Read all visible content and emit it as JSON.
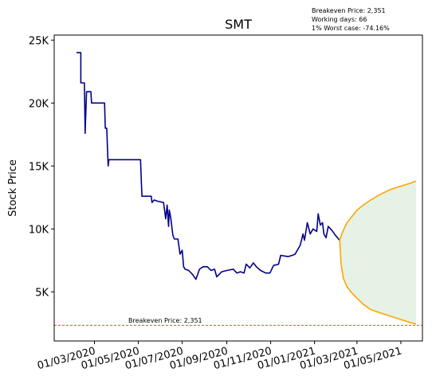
{
  "chart_data": {
    "type": "line",
    "title": "SMT",
    "ylabel": "Stock Price",
    "xlabel": "",
    "ylim": [
      1100,
      25400
    ],
    "xlim": [
      "2020-01-05",
      "2021-05-31"
    ],
    "y_ticks": [
      {
        "value": 5000,
        "label": "5K"
      },
      {
        "value": 10000,
        "label": "10K"
      },
      {
        "value": 15000,
        "label": "15K"
      },
      {
        "value": 20000,
        "label": "20K"
      },
      {
        "value": 25000,
        "label": "25K"
      }
    ],
    "x_ticks": [
      {
        "date": "2020-03-01",
        "label": "01/03/2020"
      },
      {
        "date": "2020-05-01",
        "label": "01/05/2020"
      },
      {
        "date": "2020-07-01",
        "label": "01/07/2020"
      },
      {
        "date": "2020-09-01",
        "label": "01/09/2020"
      },
      {
        "date": "2020-11-01",
        "label": "01/11/2020"
      },
      {
        "date": "2021-01-01",
        "label": "01/01/2021"
      },
      {
        "date": "2021-03-01",
        "label": "01/03/2021"
      },
      {
        "date": "2021-05-01",
        "label": "01/05/2021"
      }
    ],
    "annotation_lines": [
      "Breakeven Price: 2,351",
      "Working days: 66",
      "1% Worst case: -74.16%"
    ],
    "breakeven": {
      "value": 2351,
      "label": "Breakeven Price: 2,351"
    },
    "colors": {
      "history": "#00008b",
      "forecast": "#ffa500",
      "band_fill": "#e5f2e5",
      "breakeven": "#ff0000"
    },
    "series": [
      {
        "role": "history",
        "points": [
          [
            "2020-02-05",
            24000
          ],
          [
            "2020-02-11",
            24000
          ],
          [
            "2020-02-11",
            21600
          ],
          [
            "2020-02-16",
            21600
          ],
          [
            "2020-02-17",
            17600
          ],
          [
            "2020-02-19",
            20900
          ],
          [
            "2020-02-25",
            20900
          ],
          [
            "2020-02-26",
            20000
          ],
          [
            "2020-03-15",
            20000
          ],
          [
            "2020-03-16",
            18000
          ],
          [
            "2020-03-18",
            18000
          ],
          [
            "2020-03-20",
            15000
          ],
          [
            "2020-03-21",
            15500
          ],
          [
            "2020-05-04",
            15500
          ],
          [
            "2020-05-05",
            14000
          ],
          [
            "2020-05-06",
            12600
          ],
          [
            "2020-05-19",
            12600
          ],
          [
            "2020-05-20",
            12100
          ],
          [
            "2020-05-23",
            12300
          ],
          [
            "2020-05-28",
            12200
          ],
          [
            "2020-06-05",
            12100
          ],
          [
            "2020-06-08",
            10800
          ],
          [
            "2020-06-10",
            11900
          ],
          [
            "2020-06-12",
            10200
          ],
          [
            "2020-06-13",
            11500
          ],
          [
            "2020-06-15",
            10900
          ],
          [
            "2020-06-18",
            9500
          ],
          [
            "2020-06-20",
            9200
          ],
          [
            "2020-06-25",
            9200
          ],
          [
            "2020-06-28",
            8000
          ],
          [
            "2020-07-01",
            8300
          ],
          [
            "2020-07-03",
            7000
          ],
          [
            "2020-07-05",
            6800
          ],
          [
            "2020-07-10",
            6700
          ],
          [
            "2020-07-15",
            6400
          ],
          [
            "2020-07-20",
            6000
          ],
          [
            "2020-07-25",
            6800
          ],
          [
            "2020-07-30",
            7000
          ],
          [
            "2020-08-05",
            7000
          ],
          [
            "2020-08-10",
            6700
          ],
          [
            "2020-08-15",
            6800
          ],
          [
            "2020-08-18",
            6200
          ],
          [
            "2020-08-25",
            6600
          ],
          [
            "2020-09-01",
            6700
          ],
          [
            "2020-09-10",
            6800
          ],
          [
            "2020-09-15",
            6500
          ],
          [
            "2020-09-20",
            6600
          ],
          [
            "2020-09-25",
            6500
          ],
          [
            "2020-09-28",
            7200
          ],
          [
            "2020-10-03",
            6900
          ],
          [
            "2020-10-08",
            7300
          ],
          [
            "2020-10-12",
            7000
          ],
          [
            "2020-10-18",
            6700
          ],
          [
            "2020-10-25",
            6500
          ],
          [
            "2020-10-31",
            6500
          ],
          [
            "2020-11-05",
            7100
          ],
          [
            "2020-11-12",
            7200
          ],
          [
            "2020-11-15",
            7900
          ],
          [
            "2020-11-25",
            7800
          ],
          [
            "2020-12-01",
            7900
          ],
          [
            "2020-12-05",
            8000
          ],
          [
            "2020-12-12",
            8700
          ],
          [
            "2020-12-16",
            9600
          ],
          [
            "2020-12-18",
            9100
          ],
          [
            "2020-12-22",
            10500
          ],
          [
            "2020-12-26",
            9600
          ],
          [
            "2020-12-30",
            10000
          ],
          [
            "2021-01-04",
            9800
          ],
          [
            "2021-01-06",
            11200
          ],
          [
            "2021-01-09",
            10300
          ],
          [
            "2021-01-12",
            10500
          ],
          [
            "2021-01-14",
            9600
          ],
          [
            "2021-01-17",
            9300
          ],
          [
            "2021-01-20",
            10200
          ],
          [
            "2021-01-25",
            9900
          ],
          [
            "2021-01-30",
            9500
          ],
          [
            "2021-02-05",
            9100
          ]
        ]
      },
      {
        "role": "forecast_upper",
        "points": [
          [
            "2021-02-05",
            9100
          ],
          [
            "2021-02-08",
            9600
          ],
          [
            "2021-02-11",
            10000
          ],
          [
            "2021-02-15",
            10500
          ],
          [
            "2021-02-22",
            11000
          ],
          [
            "2021-03-01",
            11500
          ],
          [
            "2021-03-10",
            11900
          ],
          [
            "2021-03-20",
            12300
          ],
          [
            "2021-04-01",
            12700
          ],
          [
            "2021-04-15",
            13100
          ],
          [
            "2021-05-01",
            13400
          ],
          [
            "2021-05-15",
            13650
          ],
          [
            "2021-05-22",
            13800
          ]
        ]
      },
      {
        "role": "forecast_lower",
        "points": [
          [
            "2021-02-05",
            9100
          ],
          [
            "2021-02-07",
            7200
          ],
          [
            "2021-02-10",
            6100
          ],
          [
            "2021-02-15",
            5400
          ],
          [
            "2021-02-22",
            4900
          ],
          [
            "2021-03-01",
            4500
          ],
          [
            "2021-03-10",
            4000
          ],
          [
            "2021-03-20",
            3600
          ],
          [
            "2021-04-01",
            3350
          ],
          [
            "2021-04-15",
            3100
          ],
          [
            "2021-05-01",
            2800
          ],
          [
            "2021-05-15",
            2550
          ],
          [
            "2021-05-22",
            2450
          ]
        ]
      }
    ]
  }
}
